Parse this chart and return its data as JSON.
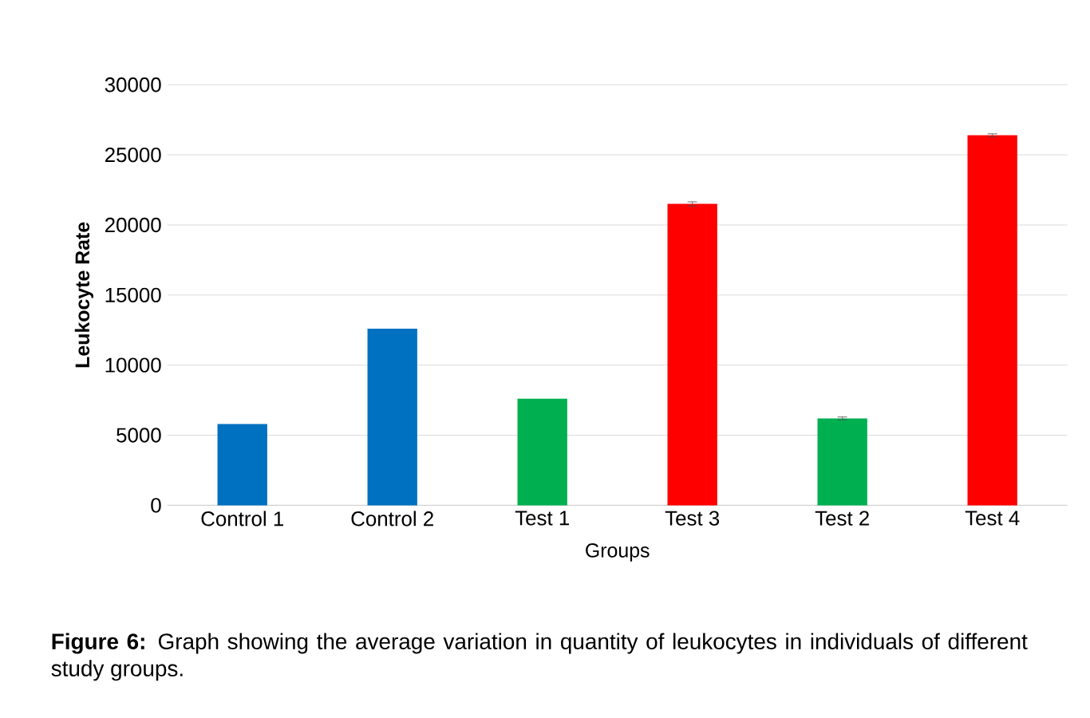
{
  "chart_data": {
    "type": "bar",
    "xlabel": "Groups",
    "ylabel": "Leukocyte Rate",
    "categories": [
      "Control 1",
      "Control 2",
      "Test 1",
      "Test 3",
      "Test 2",
      "Test 4"
    ],
    "values": [
      5800,
      12600,
      7600,
      21500,
      6200,
      26400
    ],
    "colors": [
      "#0070c0",
      "#0070c0",
      "#00b050",
      "#ff0000",
      "#00b050",
      "#ff0000"
    ],
    "errors": [
      null,
      null,
      null,
      150,
      100,
      100
    ],
    "ylim": [
      0,
      30000
    ],
    "yticks": [
      0,
      5000,
      10000,
      15000,
      20000,
      25000,
      30000
    ],
    "grid": "y",
    "annotations": [
      "**Figure 6:** Graph showing the average variation in quantity of leukocytes in individuals of different study groups."
    ]
  }
}
